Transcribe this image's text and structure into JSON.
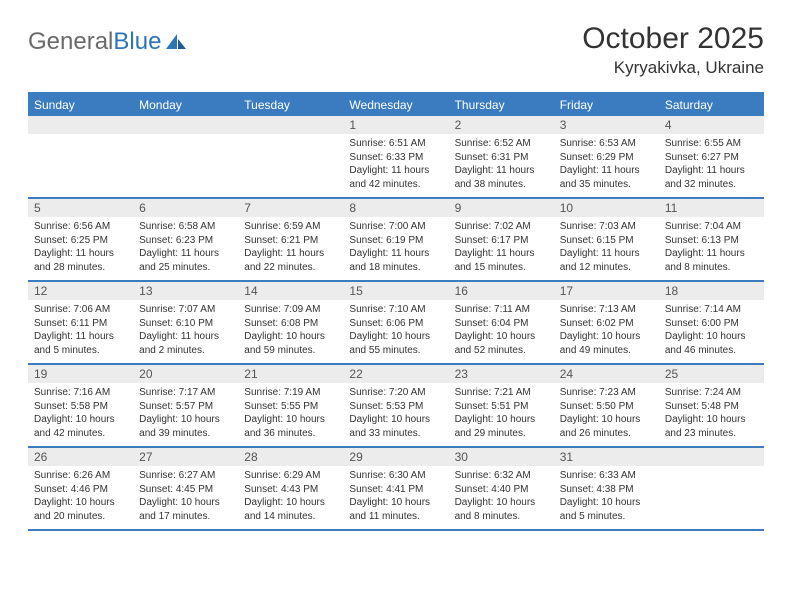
{
  "brand": {
    "name_part1": "General",
    "name_part2": "Blue"
  },
  "title": "October 2025",
  "location": "Kyryakivka, Ukraine",
  "day_headers": [
    "Sunday",
    "Monday",
    "Tuesday",
    "Wednesday",
    "Thursday",
    "Friday",
    "Saturday"
  ],
  "colors": {
    "accent": "#3b7bbf",
    "header_bg": "#3b7bbf",
    "header_text": "#ffffff",
    "daynum_bg": "#ececec",
    "daynum_text": "#555555",
    "body_text": "#333333",
    "logo_gray": "#6a6a6a",
    "logo_blue": "#2e75b6",
    "background": "#ffffff"
  },
  "typography": {
    "title_fontsize": 30,
    "location_fontsize": 17,
    "header_fontsize": 12,
    "daynum_fontsize": 12,
    "cell_fontsize": 10,
    "logo_fontsize": 24
  },
  "weeks": [
    [
      {
        "n": "",
        "sr": "",
        "ss": "",
        "dl": ""
      },
      {
        "n": "",
        "sr": "",
        "ss": "",
        "dl": ""
      },
      {
        "n": "",
        "sr": "",
        "ss": "",
        "dl": ""
      },
      {
        "n": "1",
        "sr": "Sunrise: 6:51 AM",
        "ss": "Sunset: 6:33 PM",
        "dl": "Daylight: 11 hours and 42 minutes."
      },
      {
        "n": "2",
        "sr": "Sunrise: 6:52 AM",
        "ss": "Sunset: 6:31 PM",
        "dl": "Daylight: 11 hours and 38 minutes."
      },
      {
        "n": "3",
        "sr": "Sunrise: 6:53 AM",
        "ss": "Sunset: 6:29 PM",
        "dl": "Daylight: 11 hours and 35 minutes."
      },
      {
        "n": "4",
        "sr": "Sunrise: 6:55 AM",
        "ss": "Sunset: 6:27 PM",
        "dl": "Daylight: 11 hours and 32 minutes."
      }
    ],
    [
      {
        "n": "5",
        "sr": "Sunrise: 6:56 AM",
        "ss": "Sunset: 6:25 PM",
        "dl": "Daylight: 11 hours and 28 minutes."
      },
      {
        "n": "6",
        "sr": "Sunrise: 6:58 AM",
        "ss": "Sunset: 6:23 PM",
        "dl": "Daylight: 11 hours and 25 minutes."
      },
      {
        "n": "7",
        "sr": "Sunrise: 6:59 AM",
        "ss": "Sunset: 6:21 PM",
        "dl": "Daylight: 11 hours and 22 minutes."
      },
      {
        "n": "8",
        "sr": "Sunrise: 7:00 AM",
        "ss": "Sunset: 6:19 PM",
        "dl": "Daylight: 11 hours and 18 minutes."
      },
      {
        "n": "9",
        "sr": "Sunrise: 7:02 AM",
        "ss": "Sunset: 6:17 PM",
        "dl": "Daylight: 11 hours and 15 minutes."
      },
      {
        "n": "10",
        "sr": "Sunrise: 7:03 AM",
        "ss": "Sunset: 6:15 PM",
        "dl": "Daylight: 11 hours and 12 minutes."
      },
      {
        "n": "11",
        "sr": "Sunrise: 7:04 AM",
        "ss": "Sunset: 6:13 PM",
        "dl": "Daylight: 11 hours and 8 minutes."
      }
    ],
    [
      {
        "n": "12",
        "sr": "Sunrise: 7:06 AM",
        "ss": "Sunset: 6:11 PM",
        "dl": "Daylight: 11 hours and 5 minutes."
      },
      {
        "n": "13",
        "sr": "Sunrise: 7:07 AM",
        "ss": "Sunset: 6:10 PM",
        "dl": "Daylight: 11 hours and 2 minutes."
      },
      {
        "n": "14",
        "sr": "Sunrise: 7:09 AM",
        "ss": "Sunset: 6:08 PM",
        "dl": "Daylight: 10 hours and 59 minutes."
      },
      {
        "n": "15",
        "sr": "Sunrise: 7:10 AM",
        "ss": "Sunset: 6:06 PM",
        "dl": "Daylight: 10 hours and 55 minutes."
      },
      {
        "n": "16",
        "sr": "Sunrise: 7:11 AM",
        "ss": "Sunset: 6:04 PM",
        "dl": "Daylight: 10 hours and 52 minutes."
      },
      {
        "n": "17",
        "sr": "Sunrise: 7:13 AM",
        "ss": "Sunset: 6:02 PM",
        "dl": "Daylight: 10 hours and 49 minutes."
      },
      {
        "n": "18",
        "sr": "Sunrise: 7:14 AM",
        "ss": "Sunset: 6:00 PM",
        "dl": "Daylight: 10 hours and 46 minutes."
      }
    ],
    [
      {
        "n": "19",
        "sr": "Sunrise: 7:16 AM",
        "ss": "Sunset: 5:58 PM",
        "dl": "Daylight: 10 hours and 42 minutes."
      },
      {
        "n": "20",
        "sr": "Sunrise: 7:17 AM",
        "ss": "Sunset: 5:57 PM",
        "dl": "Daylight: 10 hours and 39 minutes."
      },
      {
        "n": "21",
        "sr": "Sunrise: 7:19 AM",
        "ss": "Sunset: 5:55 PM",
        "dl": "Daylight: 10 hours and 36 minutes."
      },
      {
        "n": "22",
        "sr": "Sunrise: 7:20 AM",
        "ss": "Sunset: 5:53 PM",
        "dl": "Daylight: 10 hours and 33 minutes."
      },
      {
        "n": "23",
        "sr": "Sunrise: 7:21 AM",
        "ss": "Sunset: 5:51 PM",
        "dl": "Daylight: 10 hours and 29 minutes."
      },
      {
        "n": "24",
        "sr": "Sunrise: 7:23 AM",
        "ss": "Sunset: 5:50 PM",
        "dl": "Daylight: 10 hours and 26 minutes."
      },
      {
        "n": "25",
        "sr": "Sunrise: 7:24 AM",
        "ss": "Sunset: 5:48 PM",
        "dl": "Daylight: 10 hours and 23 minutes."
      }
    ],
    [
      {
        "n": "26",
        "sr": "Sunrise: 6:26 AM",
        "ss": "Sunset: 4:46 PM",
        "dl": "Daylight: 10 hours and 20 minutes."
      },
      {
        "n": "27",
        "sr": "Sunrise: 6:27 AM",
        "ss": "Sunset: 4:45 PM",
        "dl": "Daylight: 10 hours and 17 minutes."
      },
      {
        "n": "28",
        "sr": "Sunrise: 6:29 AM",
        "ss": "Sunset: 4:43 PM",
        "dl": "Daylight: 10 hours and 14 minutes."
      },
      {
        "n": "29",
        "sr": "Sunrise: 6:30 AM",
        "ss": "Sunset: 4:41 PM",
        "dl": "Daylight: 10 hours and 11 minutes."
      },
      {
        "n": "30",
        "sr": "Sunrise: 6:32 AM",
        "ss": "Sunset: 4:40 PM",
        "dl": "Daylight: 10 hours and 8 minutes."
      },
      {
        "n": "31",
        "sr": "Sunrise: 6:33 AM",
        "ss": "Sunset: 4:38 PM",
        "dl": "Daylight: 10 hours and 5 minutes."
      },
      {
        "n": "",
        "sr": "",
        "ss": "",
        "dl": ""
      }
    ]
  ]
}
